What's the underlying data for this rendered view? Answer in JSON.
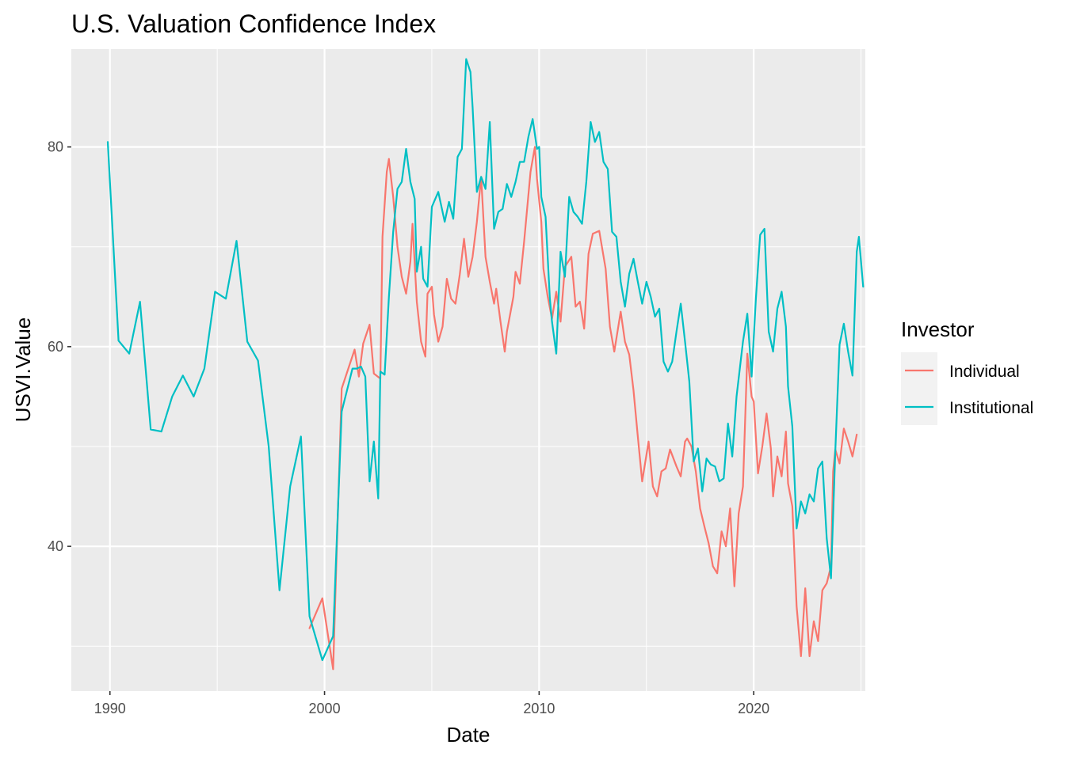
{
  "chart_data": {
    "type": "line",
    "title": "U.S. Valuation Confidence Index",
    "xlabel": "Date",
    "ylabel": "USVI.Value",
    "xlim": [
      1988.2,
      2025.2
    ],
    "ylim": [
      25.5,
      89.8
    ],
    "x_ticks": [
      1990,
      2000,
      2010,
      2020
    ],
    "y_ticks": [
      40,
      60,
      80
    ],
    "x_tick_labels": [
      "1990",
      "2000",
      "2010",
      "2020"
    ],
    "y_tick_labels": [
      "40",
      "60",
      "80"
    ],
    "grid": true,
    "legend": {
      "title": "Investor",
      "position": "right"
    },
    "colors": {
      "Individual": "#F8766D",
      "Institutional": "#00BFC4",
      "panel": "#EBEBEB",
      "grid": "#FFFFFF"
    },
    "series": [
      {
        "name": "Individual",
        "color": "#F8766D",
        "points": [
          [
            1999.3,
            31.8
          ],
          [
            1999.9,
            34.8
          ],
          [
            2000.4,
            27.7
          ],
          [
            2000.8,
            55.8
          ],
          [
            2001.4,
            59.7
          ],
          [
            2001.6,
            57.0
          ],
          [
            2001.8,
            60.3
          ],
          [
            2002.1,
            62.2
          ],
          [
            2002.3,
            57.3
          ],
          [
            2002.6,
            56.8
          ],
          [
            2002.7,
            71.0
          ],
          [
            2002.9,
            77.5
          ],
          [
            2003.0,
            78.8
          ],
          [
            2003.2,
            75.0
          ],
          [
            2003.4,
            70.0
          ],
          [
            2003.6,
            67.0
          ],
          [
            2003.8,
            65.3
          ],
          [
            2004.0,
            68.5
          ],
          [
            2004.1,
            72.3
          ],
          [
            2004.3,
            64.5
          ],
          [
            2004.5,
            60.5
          ],
          [
            2004.7,
            59.0
          ],
          [
            2004.8,
            65.3
          ],
          [
            2005.0,
            66.0
          ],
          [
            2005.1,
            63.2
          ],
          [
            2005.3,
            60.5
          ],
          [
            2005.5,
            62.0
          ],
          [
            2005.7,
            66.8
          ],
          [
            2005.9,
            64.8
          ],
          [
            2006.1,
            64.3
          ],
          [
            2006.3,
            67.2
          ],
          [
            2006.5,
            70.8
          ],
          [
            2006.7,
            67.0
          ],
          [
            2006.9,
            69.0
          ],
          [
            2007.1,
            72.5
          ],
          [
            2007.3,
            77.0
          ],
          [
            2007.5,
            69.0
          ],
          [
            2007.7,
            66.5
          ],
          [
            2007.9,
            64.3
          ],
          [
            2008.0,
            65.8
          ],
          [
            2008.2,
            62.5
          ],
          [
            2008.4,
            59.5
          ],
          [
            2008.5,
            61.5
          ],
          [
            2008.8,
            65.0
          ],
          [
            2008.9,
            67.5
          ],
          [
            2009.1,
            66.3
          ],
          [
            2009.3,
            70.5
          ],
          [
            2009.6,
            77.5
          ],
          [
            2009.8,
            80.0
          ],
          [
            2009.9,
            76.8
          ],
          [
            2010.1,
            72.5
          ],
          [
            2010.2,
            67.8
          ],
          [
            2010.4,
            65.0
          ],
          [
            2010.6,
            62.8
          ],
          [
            2010.8,
            65.5
          ],
          [
            2011.0,
            62.5
          ],
          [
            2011.2,
            68.0
          ],
          [
            2011.5,
            69.0
          ],
          [
            2011.7,
            64.0
          ],
          [
            2011.9,
            64.5
          ],
          [
            2012.1,
            61.8
          ],
          [
            2012.3,
            69.3
          ],
          [
            2012.5,
            71.3
          ],
          [
            2012.8,
            71.6
          ],
          [
            2013.1,
            67.8
          ],
          [
            2013.3,
            62.0
          ],
          [
            2013.5,
            59.5
          ],
          [
            2013.8,
            63.5
          ],
          [
            2014.0,
            60.5
          ],
          [
            2014.2,
            59.2
          ],
          [
            2014.4,
            55.6
          ],
          [
            2014.6,
            51.0
          ],
          [
            2014.8,
            46.5
          ],
          [
            2015.1,
            50.5
          ],
          [
            2015.3,
            46.0
          ],
          [
            2015.5,
            45.0
          ],
          [
            2015.7,
            47.5
          ],
          [
            2015.9,
            47.8
          ],
          [
            2016.1,
            49.7
          ],
          [
            2016.4,
            48.0
          ],
          [
            2016.6,
            47.0
          ],
          [
            2016.8,
            50.5
          ],
          [
            2016.9,
            50.8
          ],
          [
            2017.1,
            50.0
          ],
          [
            2017.3,
            47.5
          ],
          [
            2017.5,
            43.8
          ],
          [
            2017.7,
            42.0
          ],
          [
            2017.9,
            40.3
          ],
          [
            2018.1,
            38.0
          ],
          [
            2018.3,
            37.3
          ],
          [
            2018.5,
            41.5
          ],
          [
            2018.7,
            40.0
          ],
          [
            2018.9,
            43.8
          ],
          [
            2019.1,
            36.0
          ],
          [
            2019.3,
            43.3
          ],
          [
            2019.5,
            46.0
          ],
          [
            2019.7,
            59.3
          ],
          [
            2019.9,
            55.0
          ],
          [
            2020.0,
            54.5
          ],
          [
            2020.2,
            47.3
          ],
          [
            2020.4,
            50.0
          ],
          [
            2020.6,
            53.3
          ],
          [
            2020.8,
            49.8
          ],
          [
            2020.9,
            45.0
          ],
          [
            2021.1,
            49.0
          ],
          [
            2021.3,
            47.0
          ],
          [
            2021.5,
            51.5
          ],
          [
            2021.6,
            46.3
          ],
          [
            2021.8,
            44.0
          ],
          [
            2022.0,
            34.0
          ],
          [
            2022.2,
            29.0
          ],
          [
            2022.4,
            35.8
          ],
          [
            2022.6,
            29.0
          ],
          [
            2022.8,
            32.5
          ],
          [
            2023.0,
            30.5
          ],
          [
            2023.2,
            35.6
          ],
          [
            2023.4,
            36.3
          ],
          [
            2023.6,
            38.0
          ],
          [
            2023.7,
            47.5
          ],
          [
            2023.8,
            49.7
          ],
          [
            2024.0,
            48.3
          ],
          [
            2024.2,
            51.8
          ],
          [
            2024.4,
            50.5
          ],
          [
            2024.6,
            49.0
          ],
          [
            2024.8,
            51.2
          ]
        ]
      },
      {
        "name": "Institutional",
        "color": "#00BFC4",
        "points": [
          [
            1989.9,
            80.5
          ],
          [
            1990.4,
            60.6
          ],
          [
            1990.9,
            59.3
          ],
          [
            1991.4,
            64.5
          ],
          [
            1991.9,
            51.7
          ],
          [
            1992.4,
            51.5
          ],
          [
            1992.9,
            55.0
          ],
          [
            1993.4,
            57.1
          ],
          [
            1993.9,
            55.0
          ],
          [
            1994.4,
            57.8
          ],
          [
            1994.9,
            65.5
          ],
          [
            1995.4,
            64.8
          ],
          [
            1995.9,
            70.6
          ],
          [
            1996.4,
            60.5
          ],
          [
            1996.9,
            58.6
          ],
          [
            1997.4,
            50.0
          ],
          [
            1997.9,
            35.6
          ],
          [
            1998.4,
            46.0
          ],
          [
            1998.9,
            51.0
          ],
          [
            1999.3,
            33.0
          ],
          [
            1999.9,
            28.6
          ],
          [
            2000.4,
            31.0
          ],
          [
            2000.8,
            53.5
          ],
          [
            2001.3,
            57.8
          ],
          [
            2001.5,
            57.8
          ],
          [
            2001.7,
            58.0
          ],
          [
            2001.9,
            57.0
          ],
          [
            2002.1,
            46.5
          ],
          [
            2002.3,
            50.5
          ],
          [
            2002.5,
            44.8
          ],
          [
            2002.6,
            57.5
          ],
          [
            2002.8,
            57.2
          ],
          [
            2003.0,
            65.0
          ],
          [
            2003.2,
            71.5
          ],
          [
            2003.4,
            75.8
          ],
          [
            2003.6,
            76.5
          ],
          [
            2003.8,
            79.8
          ],
          [
            2004.0,
            76.5
          ],
          [
            2004.2,
            74.8
          ],
          [
            2004.3,
            67.5
          ],
          [
            2004.5,
            70.0
          ],
          [
            2004.6,
            66.8
          ],
          [
            2004.8,
            66.0
          ],
          [
            2005.0,
            74.0
          ],
          [
            2005.3,
            75.5
          ],
          [
            2005.6,
            72.5
          ],
          [
            2005.8,
            74.5
          ],
          [
            2006.0,
            72.8
          ],
          [
            2006.2,
            79.0
          ],
          [
            2006.4,
            79.8
          ],
          [
            2006.6,
            88.8
          ],
          [
            2006.8,
            87.5
          ],
          [
            2006.9,
            84.0
          ],
          [
            2007.1,
            75.5
          ],
          [
            2007.3,
            77.0
          ],
          [
            2007.5,
            75.8
          ],
          [
            2007.7,
            82.5
          ],
          [
            2007.9,
            71.8
          ],
          [
            2008.1,
            73.5
          ],
          [
            2008.3,
            73.8
          ],
          [
            2008.5,
            76.3
          ],
          [
            2008.7,
            75.0
          ],
          [
            2008.9,
            76.5
          ],
          [
            2009.1,
            78.5
          ],
          [
            2009.3,
            78.5
          ],
          [
            2009.5,
            81.0
          ],
          [
            2009.7,
            82.8
          ],
          [
            2009.9,
            79.8
          ],
          [
            2010.0,
            80.0
          ],
          [
            2010.1,
            75.0
          ],
          [
            2010.3,
            73.0
          ],
          [
            2010.5,
            64.8
          ],
          [
            2010.6,
            62.5
          ],
          [
            2010.8,
            59.3
          ],
          [
            2011.0,
            69.5
          ],
          [
            2011.2,
            67.0
          ],
          [
            2011.4,
            75.0
          ],
          [
            2011.6,
            73.5
          ],
          [
            2011.8,
            73.0
          ],
          [
            2012.0,
            72.3
          ],
          [
            2012.2,
            76.5
          ],
          [
            2012.4,
            82.5
          ],
          [
            2012.6,
            80.5
          ],
          [
            2012.8,
            81.5
          ],
          [
            2013.0,
            78.5
          ],
          [
            2013.2,
            77.8
          ],
          [
            2013.4,
            71.5
          ],
          [
            2013.6,
            71.0
          ],
          [
            2013.8,
            66.5
          ],
          [
            2014.0,
            64.0
          ],
          [
            2014.2,
            67.3
          ],
          [
            2014.4,
            68.8
          ],
          [
            2014.6,
            66.5
          ],
          [
            2014.8,
            64.3
          ],
          [
            2015.0,
            66.5
          ],
          [
            2015.2,
            65.0
          ],
          [
            2015.4,
            63.0
          ],
          [
            2015.6,
            63.8
          ],
          [
            2015.8,
            58.5
          ],
          [
            2016.0,
            57.5
          ],
          [
            2016.2,
            58.5
          ],
          [
            2016.4,
            61.5
          ],
          [
            2016.6,
            64.3
          ],
          [
            2016.8,
            60.5
          ],
          [
            2017.0,
            56.5
          ],
          [
            2017.2,
            48.5
          ],
          [
            2017.4,
            49.8
          ],
          [
            2017.6,
            45.5
          ],
          [
            2017.8,
            48.8
          ],
          [
            2018.0,
            48.2
          ],
          [
            2018.2,
            48.0
          ],
          [
            2018.4,
            46.5
          ],
          [
            2018.6,
            46.8
          ],
          [
            2018.8,
            52.3
          ],
          [
            2019.0,
            49.0
          ],
          [
            2019.2,
            55.0
          ],
          [
            2019.5,
            60.5
          ],
          [
            2019.7,
            63.3
          ],
          [
            2019.9,
            57.0
          ],
          [
            2020.1,
            64.8
          ],
          [
            2020.3,
            71.2
          ],
          [
            2020.5,
            71.8
          ],
          [
            2020.7,
            61.5
          ],
          [
            2020.9,
            59.5
          ],
          [
            2021.1,
            63.8
          ],
          [
            2021.3,
            65.5
          ],
          [
            2021.5,
            62.0
          ],
          [
            2021.6,
            56.0
          ],
          [
            2021.8,
            52.0
          ],
          [
            2022.0,
            41.8
          ],
          [
            2022.2,
            44.5
          ],
          [
            2022.4,
            43.3
          ],
          [
            2022.6,
            45.2
          ],
          [
            2022.8,
            44.5
          ],
          [
            2023.0,
            47.8
          ],
          [
            2023.2,
            48.5
          ],
          [
            2023.4,
            40.8
          ],
          [
            2023.6,
            36.8
          ],
          [
            2023.8,
            49.5
          ],
          [
            2024.0,
            60.2
          ],
          [
            2024.2,
            62.3
          ],
          [
            2024.4,
            59.5
          ],
          [
            2024.6,
            57.1
          ],
          [
            2024.8,
            69.5
          ],
          [
            2024.9,
            71.0
          ],
          [
            2025.1,
            66.0
          ]
        ]
      }
    ]
  }
}
